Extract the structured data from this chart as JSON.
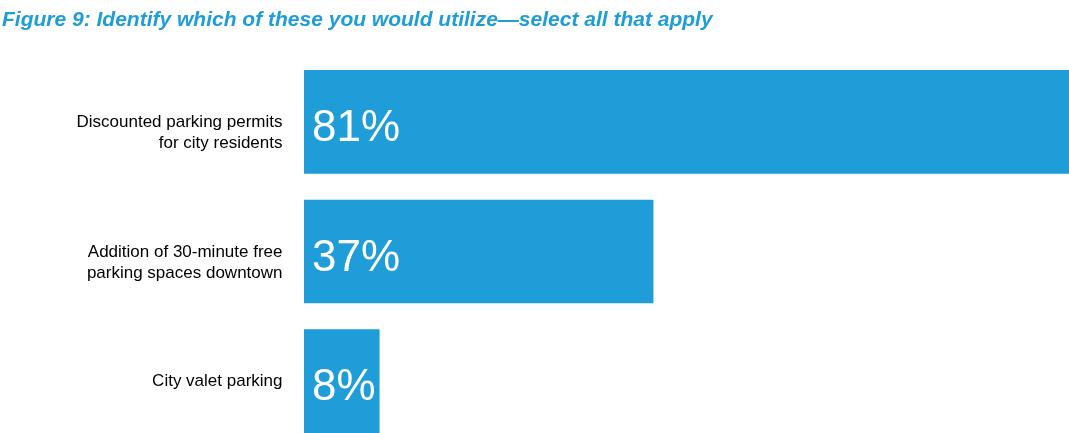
{
  "chart_data": {
    "type": "bar",
    "orientation": "horizontal",
    "title": "Figure 9: Identify which of these you would utilize—select all that apply",
    "categories": [
      "Discounted parking permits for city residents",
      "Addition of 30-minute free parking spaces downtown",
      "City valet parking"
    ],
    "values": [
      81,
      37,
      8
    ],
    "color": "#1e9dd8",
    "value_labels": [
      "81%",
      "37%",
      "8%"
    ]
  }
}
